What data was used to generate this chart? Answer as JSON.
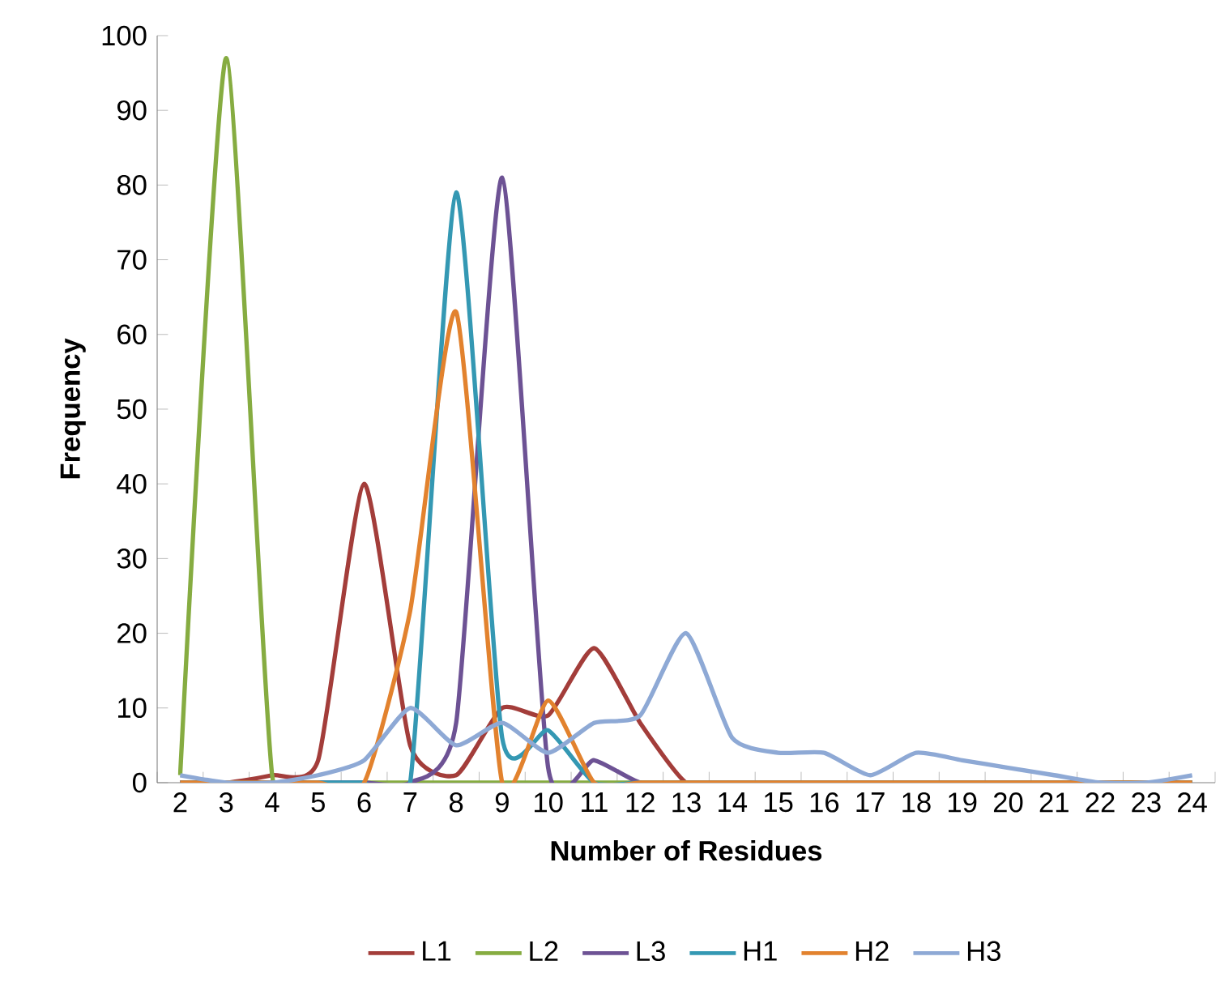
{
  "chart_data": {
    "type": "line",
    "xlabel": "Number of Residues",
    "ylabel": "Frequency",
    "categories": [
      "2",
      "3",
      "4",
      "5",
      "6",
      "7",
      "8",
      "9",
      "10",
      "11",
      "12",
      "13",
      "14",
      "15",
      "16",
      "17",
      "18",
      "19",
      "20",
      "21",
      "22",
      "23",
      "24"
    ],
    "series": [
      {
        "name": "L1",
        "color": "#a33d3a",
        "values": [
          0,
          0,
          1,
          3,
          40,
          5,
          1,
          10,
          9,
          18,
          8,
          0,
          0,
          0,
          0,
          0,
          0,
          0,
          0,
          0,
          0,
          0,
          0
        ]
      },
      {
        "name": "L2",
        "color": "#86ac41",
        "values": [
          1,
          97,
          1,
          0,
          0,
          0,
          0,
          0,
          0,
          0,
          0,
          0,
          0,
          0,
          0,
          0,
          0,
          0,
          0,
          0,
          0,
          0,
          0
        ]
      },
      {
        "name": "L3",
        "color": "#6d5294",
        "values": [
          0,
          0,
          0,
          0,
          0,
          0,
          8,
          81,
          2,
          3,
          0,
          0,
          0,
          0,
          0,
          0,
          0,
          0,
          0,
          0,
          0,
          0,
          0
        ]
      },
      {
        "name": "H1",
        "color": "#3498b3",
        "values": [
          0,
          0,
          0,
          0,
          0,
          0,
          79,
          6,
          7,
          0,
          0,
          0,
          0,
          0,
          0,
          0,
          0,
          0,
          0,
          0,
          0,
          0,
          0
        ]
      },
      {
        "name": "H2",
        "color": "#e2822e",
        "values": [
          0,
          0,
          0,
          0,
          0,
          23,
          63,
          0,
          11,
          0,
          0,
          0,
          0,
          0,
          0,
          0,
          0,
          0,
          0,
          0,
          0,
          0,
          0
        ]
      },
      {
        "name": "H3",
        "color": "#8ea9d5",
        "values": [
          1,
          0,
          0,
          1,
          3,
          10,
          5,
          8,
          4,
          8,
          9,
          20,
          6,
          4,
          4,
          1,
          4,
          3,
          2,
          1,
          0,
          0,
          1
        ]
      }
    ],
    "ylim": [
      0,
      100
    ],
    "yticks": [
      0,
      10,
      20,
      30,
      40,
      50,
      60,
      70,
      80,
      90,
      100
    ],
    "grid": false,
    "legend": "bottom",
    "line_style": "solid"
  }
}
